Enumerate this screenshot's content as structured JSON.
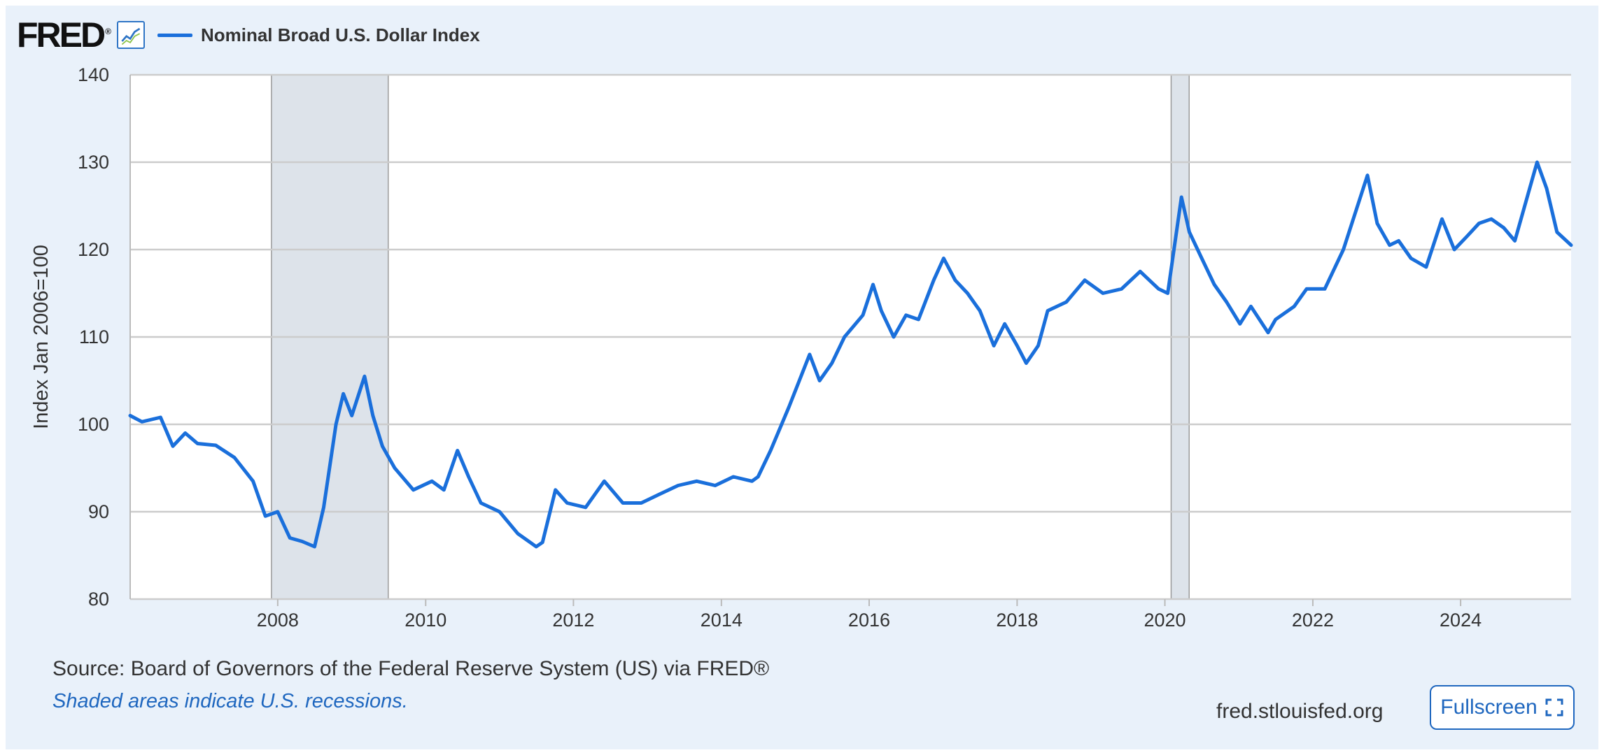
{
  "header": {
    "logo_text": "FRED",
    "logo_mark": "®",
    "logo_icon": "line-chart-icon"
  },
  "footer": {
    "source": "Source: Board of Governors of the Federal Reserve System (US) via FRED®",
    "note": "Shaded areas indicate U.S. recessions.",
    "site": "fred.stlouisfed.org",
    "fullscreen_label": "Fullscreen",
    "fullscreen_icon": "fullscreen-icon"
  },
  "colors": {
    "series": "#1a6fdb",
    "recession": "#dde3ea",
    "grid": "#cccccc",
    "background": "#e9f1fa"
  },
  "chart_data": {
    "type": "line",
    "title": "",
    "ylabel": "Index Jan 2006=100",
    "xlabel": "",
    "xlim": [
      "2006-01-02",
      "2025-06-30"
    ],
    "ylim": [
      80,
      140
    ],
    "yticks": [
      80,
      90,
      100,
      110,
      120,
      130,
      140
    ],
    "xticks": [
      "2008",
      "2010",
      "2012",
      "2014",
      "2016",
      "2018",
      "2020",
      "2022",
      "2024"
    ],
    "grid": true,
    "legend_position": "top-left",
    "recessions": [
      {
        "start": "2007-12-01",
        "end": "2009-06-30"
      },
      {
        "start": "2020-02-01",
        "end": "2020-04-30"
      }
    ],
    "series": [
      {
        "name": "Nominal Broad U.S. Dollar Index",
        "points": [
          [
            "2006-01-02",
            101.0
          ],
          [
            "2006-03-01",
            100.3
          ],
          [
            "2006-06-01",
            100.8
          ],
          [
            "2006-08-01",
            97.5
          ],
          [
            "2006-10-01",
            99.0
          ],
          [
            "2006-12-01",
            97.8
          ],
          [
            "2007-03-01",
            97.6
          ],
          [
            "2007-06-01",
            96.2
          ],
          [
            "2007-09-01",
            93.5
          ],
          [
            "2007-11-01",
            89.5
          ],
          [
            "2008-01-01",
            90.0
          ],
          [
            "2008-03-01",
            87.0
          ],
          [
            "2008-05-01",
            86.6
          ],
          [
            "2008-07-01",
            86.0
          ],
          [
            "2008-08-15",
            90.5
          ],
          [
            "2008-10-15",
            100.0
          ],
          [
            "2008-11-20",
            103.5
          ],
          [
            "2009-01-01",
            101.0
          ],
          [
            "2009-03-05",
            105.5
          ],
          [
            "2009-04-15",
            101.0
          ],
          [
            "2009-06-01",
            97.5
          ],
          [
            "2009-08-01",
            95.0
          ],
          [
            "2009-11-01",
            92.5
          ],
          [
            "2010-02-01",
            93.5
          ],
          [
            "2010-04-01",
            92.5
          ],
          [
            "2010-06-07",
            97.0
          ],
          [
            "2010-08-01",
            94.0
          ],
          [
            "2010-10-01",
            91.0
          ],
          [
            "2011-01-01",
            90.0
          ],
          [
            "2011-04-01",
            87.5
          ],
          [
            "2011-07-01",
            86.0
          ],
          [
            "2011-08-01",
            86.5
          ],
          [
            "2011-10-04",
            92.5
          ],
          [
            "2011-12-01",
            91.0
          ],
          [
            "2012-03-01",
            90.5
          ],
          [
            "2012-06-01",
            93.5
          ],
          [
            "2012-09-01",
            91.0
          ],
          [
            "2012-12-01",
            91.0
          ],
          [
            "2013-03-01",
            92.0
          ],
          [
            "2013-06-01",
            93.0
          ],
          [
            "2013-09-01",
            93.5
          ],
          [
            "2013-12-01",
            93.0
          ],
          [
            "2014-03-01",
            94.0
          ],
          [
            "2014-06-01",
            93.5
          ],
          [
            "2014-07-01",
            94.0
          ],
          [
            "2014-09-01",
            97.0
          ],
          [
            "2014-12-01",
            102.0
          ],
          [
            "2015-03-13",
            108.0
          ],
          [
            "2015-05-01",
            105.0
          ],
          [
            "2015-07-01",
            107.0
          ],
          [
            "2015-09-01",
            110.0
          ],
          [
            "2015-12-01",
            112.5
          ],
          [
            "2016-01-20",
            116.0
          ],
          [
            "2016-03-01",
            113.0
          ],
          [
            "2016-05-01",
            110.0
          ],
          [
            "2016-07-01",
            112.5
          ],
          [
            "2016-09-01",
            112.0
          ],
          [
            "2016-11-15",
            116.5
          ],
          [
            "2017-01-03",
            119.0
          ],
          [
            "2017-03-01",
            116.5
          ],
          [
            "2017-05-01",
            115.0
          ],
          [
            "2017-07-01",
            113.0
          ],
          [
            "2017-09-08",
            109.0
          ],
          [
            "2017-11-01",
            111.5
          ],
          [
            "2018-01-01",
            109.0
          ],
          [
            "2018-02-15",
            107.0
          ],
          [
            "2018-04-15",
            109.0
          ],
          [
            "2018-06-01",
            113.0
          ],
          [
            "2018-09-01",
            114.0
          ],
          [
            "2018-12-01",
            116.5
          ],
          [
            "2019-03-01",
            115.0
          ],
          [
            "2019-06-01",
            115.5
          ],
          [
            "2019-09-01",
            117.5
          ],
          [
            "2019-12-01",
            115.5
          ],
          [
            "2020-01-15",
            115.0
          ],
          [
            "2020-03-23",
            126.0
          ],
          [
            "2020-05-01",
            122.0
          ],
          [
            "2020-07-01",
            119.0
          ],
          [
            "2020-09-01",
            116.0
          ],
          [
            "2020-11-01",
            114.0
          ],
          [
            "2021-01-06",
            111.5
          ],
          [
            "2021-03-01",
            113.5
          ],
          [
            "2021-05-25",
            110.5
          ],
          [
            "2021-07-01",
            112.0
          ],
          [
            "2021-10-01",
            113.5
          ],
          [
            "2021-12-01",
            115.5
          ],
          [
            "2022-03-01",
            115.5
          ],
          [
            "2022-06-01",
            120.0
          ],
          [
            "2022-09-28",
            128.5
          ],
          [
            "2022-11-15",
            123.0
          ],
          [
            "2023-01-15",
            120.5
          ],
          [
            "2023-03-01",
            121.0
          ],
          [
            "2023-05-01",
            119.0
          ],
          [
            "2023-07-15",
            118.0
          ],
          [
            "2023-10-01",
            123.5
          ],
          [
            "2023-12-01",
            120.0
          ],
          [
            "2024-02-01",
            121.5
          ],
          [
            "2024-04-01",
            123.0
          ],
          [
            "2024-06-01",
            123.5
          ],
          [
            "2024-08-01",
            122.5
          ],
          [
            "2024-09-25",
            121.0
          ],
          [
            "2024-12-01",
            126.5
          ],
          [
            "2025-01-13",
            130.0
          ],
          [
            "2025-03-01",
            127.0
          ],
          [
            "2025-04-21",
            122.0
          ],
          [
            "2025-06-30",
            120.5
          ]
        ]
      }
    ]
  }
}
